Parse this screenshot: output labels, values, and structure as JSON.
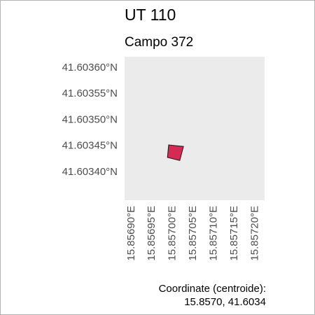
{
  "map": {
    "title": "UT 110",
    "subtitle": "Campo 372",
    "panel_color": "#ebebeb",
    "border_color": "#b3b3b3",
    "parcel_fill": "#d42a53",
    "parcel_stroke": "#1a1a1a",
    "lat_ticks": [
      41.6036,
      41.60355,
      41.6035,
      41.60345,
      41.6034
    ],
    "lat_labels": [
      "41.60360°N",
      "41.60355°N",
      "41.60350°N",
      "41.60345°N",
      "41.60340°N"
    ],
    "lon_ticks": [
      15.8569,
      15.85695,
      15.857,
      15.85705,
      15.8571,
      15.85715,
      15.8572
    ],
    "lon_labels": [
      "15.85690°E",
      "15.85695°E",
      "15.85700°E",
      "15.85705°E",
      "15.85710°E",
      "15.85715°E",
      "15.85720°E"
    ],
    "extent": {
      "lon": [
        15.856885,
        15.857225
      ],
      "lat": [
        41.603345,
        41.60362
      ]
    },
    "parcel_polygon": [
      [
        15.856992,
        41.603451
      ],
      [
        15.857028,
        41.603448
      ],
      [
        15.857019,
        41.603421
      ],
      [
        15.856989,
        41.603427
      ]
    ],
    "caption_line1": "Coordinate (centroide):",
    "caption_line2": "15.8570, 41.6034"
  }
}
